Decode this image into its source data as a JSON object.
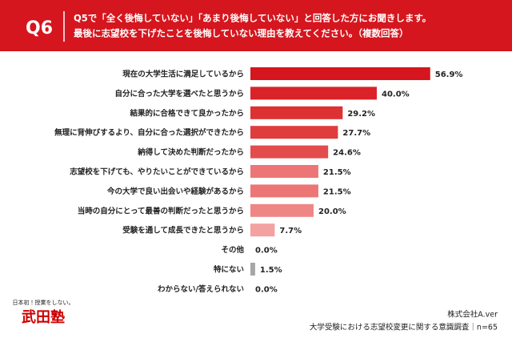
{
  "chart_data": {
    "type": "bar",
    "orientation": "horizontal",
    "question_number": "Q6",
    "title": "Q5で「全く後悔していない」「あまり後悔していない」と回答した方にお聞きします。",
    "subtitle": "最後に志望校を下げたことを後悔していない理由を教えてください。（複数回答）",
    "categories": [
      "現在の大学生活に満足しているから",
      "自分に合った大学を選べたと思うから",
      "結果的に合格できて良かったから",
      "無理に背伸びするより、自分に合った選択ができたから",
      "納得して決めた判断だったから",
      "志望校を下げても、やりたいことができているから",
      "今の大学で良い出会いや経験があるから",
      "当時の自分にとって最善の判断だったと思うから",
      "受験を通して成長できたと思うから",
      "その他",
      "特にない",
      "わからない/答えられない"
    ],
    "values": [
      56.9,
      40.0,
      29.2,
      27.7,
      24.6,
      21.5,
      21.5,
      20.0,
      7.7,
      0.0,
      1.5,
      0.0
    ],
    "value_labels": [
      "56.9%",
      "40.0%",
      "29.2%",
      "27.7%",
      "24.6%",
      "21.5%",
      "21.5%",
      "20.0%",
      "7.7%",
      "0.0%",
      "1.5%",
      "0.0%"
    ],
    "colors": [
      "#d5161e",
      "#da2328",
      "#dd3134",
      "#df3c3e",
      "#e24c4d",
      "#ec7676",
      "#ec7676",
      "#ef8686",
      "#f4a1a1",
      "#f4a1a1",
      "#a6a6a6",
      "#a6a6a6"
    ],
    "source": "株式会社A.ver",
    "note": "大学受験における志望校変更に関する意識調査｜n=65"
  },
  "logo": {
    "tagline": "日本初！授業をしない。",
    "name": "武田塾"
  }
}
